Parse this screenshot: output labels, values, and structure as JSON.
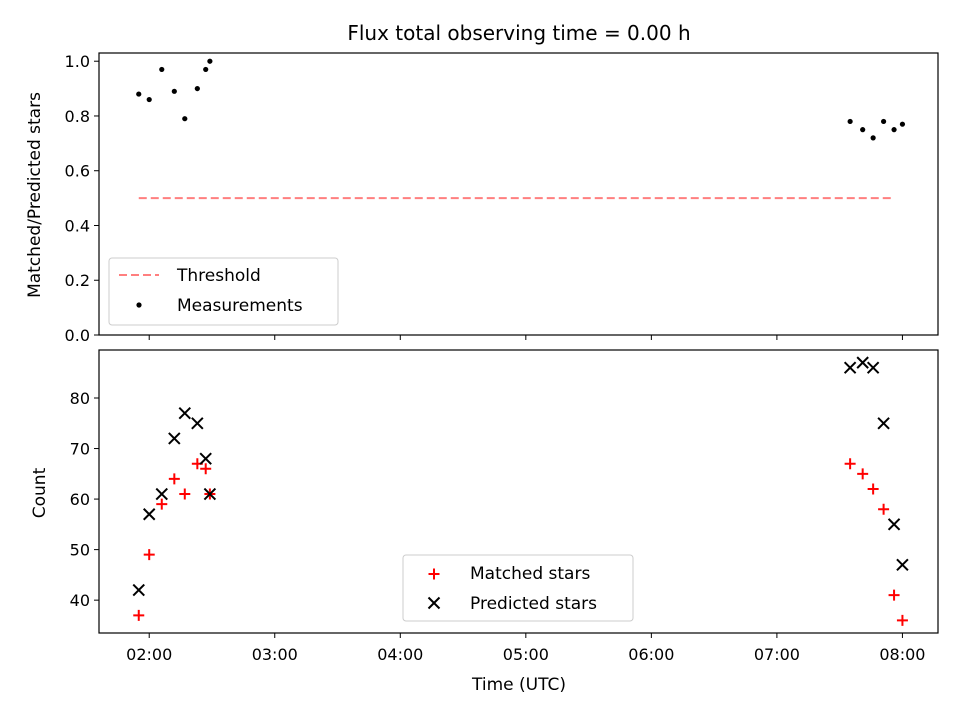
{
  "chart_data": [
    {
      "type": "scatter",
      "title": "Flux total observing time = 0.00 h",
      "ylabel": "Matched/Predicted stars",
      "xlabel": "",
      "xlim": [
        "01:36",
        "08:17"
      ],
      "ylim": [
        0,
        1.03
      ],
      "yticks": [
        "0.0",
        "0.2",
        "0.4",
        "0.6",
        "0.8",
        "1.0"
      ],
      "legend_position": "lower-left",
      "threshold": {
        "name": "Threshold",
        "value": 0.5,
        "x_start": "01:55",
        "x_end": "07:55",
        "style": "dashed",
        "color": "#ff7f7f"
      },
      "series": [
        {
          "name": "Measurements",
          "marker": "dot",
          "color": "#000000",
          "x": [
            "01:55",
            "02:00",
            "02:06",
            "02:12",
            "02:17",
            "02:23",
            "02:27",
            "02:29",
            "07:35",
            "07:41",
            "07:46",
            "07:51",
            "07:56",
            "08:00"
          ],
          "y": [
            0.88,
            0.86,
            0.97,
            0.89,
            0.79,
            0.9,
            0.97,
            1.0,
            0.78,
            0.75,
            0.72,
            0.78,
            0.75,
            0.77
          ]
        }
      ]
    },
    {
      "type": "scatter",
      "xlabel": "Time (UTC)",
      "ylabel": "Count",
      "xlim": [
        "01:36",
        "08:17"
      ],
      "ylim": [
        33.5,
        89.5
      ],
      "yticks": [
        "40",
        "50",
        "60",
        "70",
        "80"
      ],
      "xticks": [
        "02:00",
        "03:00",
        "04:00",
        "05:00",
        "06:00",
        "07:00",
        "08:00"
      ],
      "legend_position": "lower-center",
      "series": [
        {
          "name": "Matched stars",
          "marker": "plus",
          "color": "#ff0000",
          "x": [
            "01:55",
            "02:00",
            "02:06",
            "02:12",
            "02:17",
            "02:23",
            "02:27",
            "02:29",
            "07:35",
            "07:41",
            "07:46",
            "07:51",
            "07:56",
            "08:00"
          ],
          "y": [
            37,
            49,
            59,
            64,
            61,
            67,
            66,
            61,
            67,
            65,
            62,
            58,
            41,
            36
          ]
        },
        {
          "name": "Predicted stars",
          "marker": "x",
          "color": "#000000",
          "x": [
            "01:55",
            "02:00",
            "02:06",
            "02:12",
            "02:17",
            "02:23",
            "02:27",
            "02:29",
            "07:35",
            "07:41",
            "07:46",
            "07:51",
            "07:56",
            "08:00"
          ],
          "y": [
            42,
            57,
            61,
            72,
            77,
            75,
            68,
            61,
            86,
            87,
            86,
            75,
            55,
            47
          ]
        }
      ]
    }
  ]
}
